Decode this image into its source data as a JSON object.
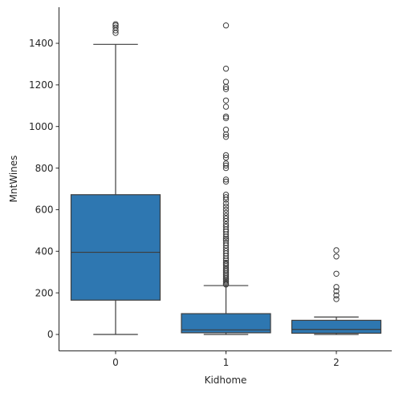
{
  "chart_data": {
    "type": "box",
    "xlabel": "Kidhome",
    "ylabel": "MntWines",
    "categories": [
      "0",
      "1",
      "2"
    ],
    "ylim": [
      -75,
      1570
    ],
    "yticks": [
      0,
      200,
      400,
      600,
      800,
      1000,
      1200,
      1400
    ],
    "grid": false,
    "box_color": "#2e77b1",
    "line_color": "#3d3d3d",
    "boxes": [
      {
        "category": "0",
        "whisker_low": 0,
        "q1": 165,
        "median": 395,
        "q3": 672,
        "whisker_high": 1395,
        "outliers": [
          1450,
          1462,
          1476,
          1486,
          1492
        ]
      },
      {
        "category": "1",
        "whisker_low": 0,
        "q1": 8,
        "median": 22,
        "q3": 100,
        "whisker_high": 235,
        "outliers": [
          240,
          245,
          252,
          258,
          265,
          272,
          280,
          288,
          296,
          305,
          312,
          320,
          330,
          338,
          345,
          355,
          365,
          378,
          390,
          402,
          415,
          428,
          440,
          452,
          460,
          470,
          482,
          495,
          505,
          518,
          530,
          545,
          558,
          570,
          585,
          600,
          615,
          630,
          648,
          660,
          672,
          735,
          745,
          800,
          812,
          822,
          850,
          862,
          950,
          962,
          985,
          1040,
          1048,
          1095,
          1125,
          1180,
          1190,
          1215,
          1278,
          1486
        ]
      },
      {
        "category": "2",
        "whisker_low": 0,
        "q1": 6,
        "median": 24,
        "q3": 68,
        "whisker_high": 84,
        "outliers": [
          170,
          188,
          208,
          228,
          292,
          375,
          405
        ]
      }
    ]
  }
}
